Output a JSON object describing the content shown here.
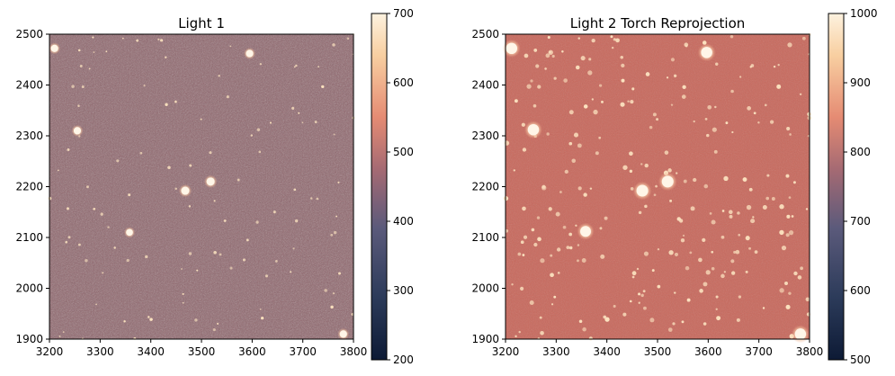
{
  "chart_data": [
    {
      "type": "heatmap",
      "title": "Light 1",
      "xlabel": "",
      "ylabel": "",
      "xlim": [
        3200,
        3800
      ],
      "ylim": [
        1900,
        2500
      ],
      "xticks": [
        "3200",
        "3300",
        "3400",
        "3500",
        "3600",
        "3700",
        "3800"
      ],
      "yticks": [
        "1900",
        "2000",
        "2100",
        "2200",
        "2300",
        "2400",
        "2500"
      ],
      "colorbar": {
        "range": [
          200,
          700
        ],
        "ticks": [
          "200",
          "300",
          "400",
          "500",
          "600",
          "700"
        ],
        "colormap": "cmr.torch-like (dark navy to salmon to cream)"
      },
      "background_level": 420,
      "bright_sources": [
        {
          "x": 3468,
          "y": 2192,
          "peak": 700
        },
        {
          "x": 3518,
          "y": 2210,
          "peak": 700
        },
        {
          "x": 3255,
          "y": 2310,
          "peak": 650
        },
        {
          "x": 3210,
          "y": 2472,
          "peak": 650
        },
        {
          "x": 3595,
          "y": 2462,
          "peak": 650
        },
        {
          "x": 3358,
          "y": 2110,
          "peak": 620
        },
        {
          "x": 3780,
          "y": 1910,
          "peak": 650
        }
      ]
    },
    {
      "type": "heatmap",
      "title": "Light 2 Torch Reprojection",
      "xlabel": "",
      "ylabel": "",
      "xlim": [
        3200,
        3800
      ],
      "ylim": [
        1900,
        2500
      ],
      "xticks": [
        "3200",
        "3300",
        "3400",
        "3500",
        "3600",
        "3700",
        "3800"
      ],
      "yticks": [
        "1900",
        "2000",
        "2100",
        "2200",
        "2300",
        "2400",
        "2500"
      ],
      "colorbar": {
        "range": [
          500,
          1000
        ],
        "ticks": [
          "500",
          "600",
          "700",
          "800",
          "900",
          "1000"
        ],
        "colormap": "cmr.torch-like (dark navy to salmon to cream)"
      },
      "background_level": 780,
      "bright_sources": [
        {
          "x": 3470,
          "y": 2192,
          "peak": 1000
        },
        {
          "x": 3520,
          "y": 2210,
          "peak": 1000
        },
        {
          "x": 3255,
          "y": 2312,
          "peak": 980
        },
        {
          "x": 3212,
          "y": 2472,
          "peak": 980
        },
        {
          "x": 3597,
          "y": 2464,
          "peak": 980
        },
        {
          "x": 3358,
          "y": 2112,
          "peak": 960
        },
        {
          "x": 3782,
          "y": 1910,
          "peak": 980
        }
      ]
    }
  ],
  "colors": {
    "colormap_stops": [
      "#0d1a35",
      "#2c3b5a",
      "#5b5a7b",
      "#a56a73",
      "#e58b73",
      "#f8cfa1",
      "#fdf2df"
    ]
  }
}
